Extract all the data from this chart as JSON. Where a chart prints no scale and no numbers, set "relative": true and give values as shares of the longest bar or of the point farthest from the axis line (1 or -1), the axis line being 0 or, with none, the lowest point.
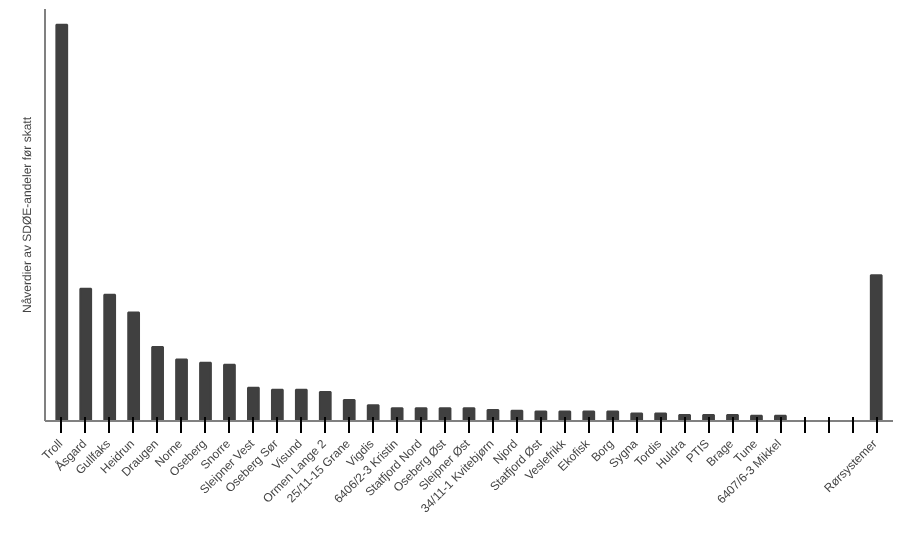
{
  "chart_data": {
    "type": "bar",
    "ylabel": "Nåverdier av SDØE-andeler før skatt",
    "relative": true,
    "color": "#404040",
    "grid": false,
    "categories": [
      "Troll",
      "Åsgard",
      "Gullfaks",
      "Heidrun",
      "Draugen",
      "Norne",
      "Oseberg",
      "Snorre",
      "Sleipner Vest",
      "Oseberg Sør",
      "Visund",
      "Ormen Lange 2",
      "25/11-15 Grane",
      "Vigdis",
      "6406/2-3 Kristin",
      "Statfjord Nord",
      "Oseberg Øst",
      "Sleipner Øst",
      "34/11-1 Kvitebjørn",
      "Njord",
      "Statfjord Øst",
      "Veslefrikk",
      "Ekofisk",
      "Borg",
      "Sygna",
      "Tordis",
      "Huldra",
      "PTIS",
      "Brage",
      "Tune",
      "6407/6-3 Mikkel",
      null,
      null,
      null,
      "Rørsystemer"
    ],
    "values": [
      1,
      0.334,
      0.319,
      0.274,
      0.187,
      0.155,
      0.147,
      0.142,
      0.084,
      0.079,
      0.079,
      0.073,
      0.053,
      0.04,
      0.032,
      0.032,
      0.032,
      0.032,
      0.028,
      0.026,
      0.024,
      0.024,
      0.024,
      0.024,
      0.019,
      0.019,
      0.015,
      0.015,
      0.015,
      0.013,
      0.013,
      null,
      null,
      null,
      0.368
    ]
  }
}
